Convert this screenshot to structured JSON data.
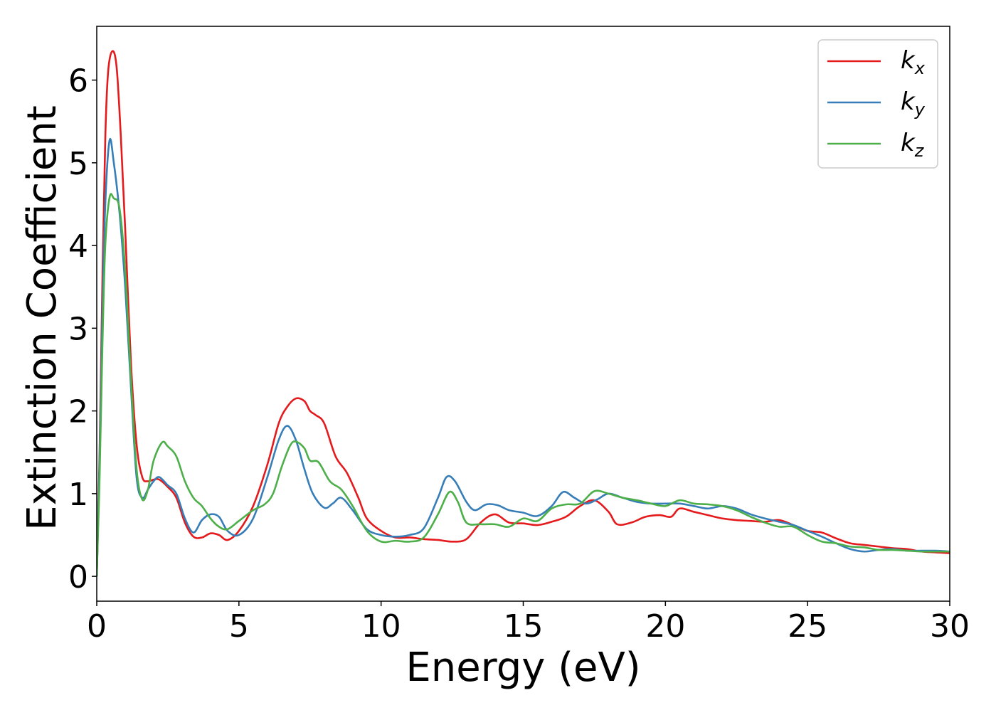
{
  "chart_data": {
    "type": "line",
    "xlabel": "Energy (eV)",
    "ylabel": "Extinction Coefficient",
    "xlim": [
      0,
      30
    ],
    "ylim": [
      -0.3,
      6.65
    ],
    "xticks": [
      0,
      5,
      10,
      15,
      20,
      25,
      30
    ],
    "xtick_labels": [
      "0",
      "5",
      "10",
      "15",
      "20",
      "25",
      "30"
    ],
    "yticks": [
      0,
      1,
      2,
      3,
      4,
      5,
      6
    ],
    "ytick_labels": [
      "0",
      "1",
      "2",
      "3",
      "4",
      "5",
      "6"
    ],
    "grid": false,
    "legend_position": "top-right",
    "series": [
      {
        "name": "k",
        "name_subscript": "x",
        "color": "#e41a1c",
        "points": [
          [
            0,
            0
          ],
          [
            0.1,
            1.5
          ],
          [
            0.2,
            3.6
          ],
          [
            0.3,
            5.3
          ],
          [
            0.4,
            6.1
          ],
          [
            0.55,
            6.35
          ],
          [
            0.7,
            6.15
          ],
          [
            0.85,
            5.3
          ],
          [
            1.0,
            4.2
          ],
          [
            1.2,
            2.6
          ],
          [
            1.4,
            1.6
          ],
          [
            1.6,
            1.2
          ],
          [
            1.8,
            1.15
          ],
          [
            2.0,
            1.17
          ],
          [
            2.2,
            1.17
          ],
          [
            2.5,
            1.08
          ],
          [
            2.8,
            0.95
          ],
          [
            3.1,
            0.65
          ],
          [
            3.4,
            0.48
          ],
          [
            3.7,
            0.47
          ],
          [
            4.0,
            0.52
          ],
          [
            4.3,
            0.5
          ],
          [
            4.6,
            0.44
          ],
          [
            5.0,
            0.55
          ],
          [
            5.5,
            0.85
          ],
          [
            6.0,
            1.35
          ],
          [
            6.4,
            1.85
          ],
          [
            6.7,
            2.05
          ],
          [
            7.0,
            2.15
          ],
          [
            7.3,
            2.12
          ],
          [
            7.5,
            2.0
          ],
          [
            7.7,
            1.95
          ],
          [
            8.0,
            1.85
          ],
          [
            8.4,
            1.45
          ],
          [
            8.8,
            1.25
          ],
          [
            9.2,
            0.95
          ],
          [
            9.5,
            0.7
          ],
          [
            10.0,
            0.55
          ],
          [
            10.5,
            0.47
          ],
          [
            11.0,
            0.47
          ],
          [
            11.5,
            0.45
          ],
          [
            12.0,
            0.44
          ],
          [
            12.5,
            0.42
          ],
          [
            13.0,
            0.45
          ],
          [
            13.5,
            0.65
          ],
          [
            14.0,
            0.75
          ],
          [
            14.5,
            0.65
          ],
          [
            15.0,
            0.64
          ],
          [
            15.5,
            0.62
          ],
          [
            16.0,
            0.66
          ],
          [
            16.5,
            0.72
          ],
          [
            17.0,
            0.85
          ],
          [
            17.5,
            0.92
          ],
          [
            18.0,
            0.78
          ],
          [
            18.3,
            0.63
          ],
          [
            18.8,
            0.65
          ],
          [
            19.3,
            0.72
          ],
          [
            19.8,
            0.74
          ],
          [
            20.2,
            0.72
          ],
          [
            20.5,
            0.82
          ],
          [
            21.0,
            0.78
          ],
          [
            21.5,
            0.74
          ],
          [
            22.0,
            0.7
          ],
          [
            22.5,
            0.68
          ],
          [
            23.0,
            0.67
          ],
          [
            23.5,
            0.66
          ],
          [
            24.0,
            0.68
          ],
          [
            24.5,
            0.62
          ],
          [
            25.0,
            0.55
          ],
          [
            25.5,
            0.53
          ],
          [
            26.0,
            0.46
          ],
          [
            26.5,
            0.4
          ],
          [
            27.0,
            0.38
          ],
          [
            27.5,
            0.36
          ],
          [
            28.0,
            0.34
          ],
          [
            28.5,
            0.33
          ],
          [
            29.0,
            0.3
          ],
          [
            29.5,
            0.29
          ],
          [
            30.0,
            0.28
          ]
        ]
      },
      {
        "name": "k",
        "name_subscript": "y",
        "color": "#377eb8",
        "points": [
          [
            0,
            0
          ],
          [
            0.1,
            1.4
          ],
          [
            0.2,
            3.2
          ],
          [
            0.3,
            4.5
          ],
          [
            0.45,
            5.27
          ],
          [
            0.6,
            5.0
          ],
          [
            0.8,
            4.4
          ],
          [
            1.0,
            3.5
          ],
          [
            1.2,
            2.3
          ],
          [
            1.4,
            1.2
          ],
          [
            1.6,
            0.95
          ],
          [
            1.8,
            1.05
          ],
          [
            2.0,
            1.15
          ],
          [
            2.2,
            1.2
          ],
          [
            2.5,
            1.1
          ],
          [
            2.8,
            1.0
          ],
          [
            3.1,
            0.7
          ],
          [
            3.4,
            0.53
          ],
          [
            3.7,
            0.68
          ],
          [
            4.0,
            0.75
          ],
          [
            4.3,
            0.72
          ],
          [
            4.6,
            0.55
          ],
          [
            5.0,
            0.5
          ],
          [
            5.5,
            0.7
          ],
          [
            6.0,
            1.2
          ],
          [
            6.4,
            1.65
          ],
          [
            6.7,
            1.82
          ],
          [
            7.0,
            1.65
          ],
          [
            7.3,
            1.3
          ],
          [
            7.6,
            1.0
          ],
          [
            8.0,
            0.83
          ],
          [
            8.3,
            0.88
          ],
          [
            8.6,
            0.95
          ],
          [
            9.0,
            0.8
          ],
          [
            9.5,
            0.57
          ],
          [
            10.0,
            0.5
          ],
          [
            10.5,
            0.48
          ],
          [
            11.0,
            0.5
          ],
          [
            11.5,
            0.58
          ],
          [
            12.0,
            0.95
          ],
          [
            12.3,
            1.2
          ],
          [
            12.6,
            1.15
          ],
          [
            13.0,
            0.9
          ],
          [
            13.3,
            0.8
          ],
          [
            13.7,
            0.87
          ],
          [
            14.1,
            0.86
          ],
          [
            14.5,
            0.8
          ],
          [
            15.0,
            0.77
          ],
          [
            15.5,
            0.73
          ],
          [
            16.0,
            0.85
          ],
          [
            16.4,
            1.02
          ],
          [
            16.8,
            0.95
          ],
          [
            17.2,
            0.88
          ],
          [
            17.6,
            0.93
          ],
          [
            18.0,
            1.0
          ],
          [
            18.5,
            0.95
          ],
          [
            19.0,
            0.9
          ],
          [
            19.5,
            0.88
          ],
          [
            20.0,
            0.88
          ],
          [
            20.5,
            0.88
          ],
          [
            21.0,
            0.85
          ],
          [
            21.5,
            0.82
          ],
          [
            22.0,
            0.85
          ],
          [
            22.5,
            0.82
          ],
          [
            23.0,
            0.75
          ],
          [
            23.5,
            0.7
          ],
          [
            24.0,
            0.66
          ],
          [
            24.5,
            0.62
          ],
          [
            25.0,
            0.55
          ],
          [
            25.5,
            0.48
          ],
          [
            26.0,
            0.4
          ],
          [
            26.5,
            0.33
          ],
          [
            27.0,
            0.3
          ],
          [
            27.5,
            0.32
          ],
          [
            28.0,
            0.33
          ],
          [
            28.5,
            0.31
          ],
          [
            29.0,
            0.31
          ],
          [
            29.5,
            0.31
          ],
          [
            30.0,
            0.3
          ]
        ]
      },
      {
        "name": "k",
        "name_subscript": "z",
        "color": "#4daf4a",
        "points": [
          [
            0,
            0
          ],
          [
            0.1,
            1.2
          ],
          [
            0.2,
            2.8
          ],
          [
            0.3,
            4.0
          ],
          [
            0.45,
            4.58
          ],
          [
            0.6,
            4.57
          ],
          [
            0.8,
            4.45
          ],
          [
            1.0,
            3.7
          ],
          [
            1.2,
            2.4
          ],
          [
            1.4,
            1.3
          ],
          [
            1.6,
            0.93
          ],
          [
            1.8,
            1.05
          ],
          [
            2.0,
            1.4
          ],
          [
            2.3,
            1.62
          ],
          [
            2.5,
            1.57
          ],
          [
            2.8,
            1.45
          ],
          [
            3.1,
            1.15
          ],
          [
            3.4,
            0.95
          ],
          [
            3.7,
            0.85
          ],
          [
            4.0,
            0.7
          ],
          [
            4.3,
            0.6
          ],
          [
            4.6,
            0.57
          ],
          [
            5.0,
            0.67
          ],
          [
            5.5,
            0.8
          ],
          [
            5.9,
            0.87
          ],
          [
            6.2,
            1.0
          ],
          [
            6.5,
            1.32
          ],
          [
            6.8,
            1.58
          ],
          [
            7.0,
            1.63
          ],
          [
            7.3,
            1.55
          ],
          [
            7.5,
            1.4
          ],
          [
            7.8,
            1.38
          ],
          [
            8.2,
            1.15
          ],
          [
            8.6,
            1.05
          ],
          [
            9.0,
            0.85
          ],
          [
            9.5,
            0.55
          ],
          [
            10.0,
            0.42
          ],
          [
            10.5,
            0.43
          ],
          [
            11.0,
            0.42
          ],
          [
            11.5,
            0.47
          ],
          [
            12.0,
            0.75
          ],
          [
            12.4,
            1.02
          ],
          [
            12.7,
            0.9
          ],
          [
            13.0,
            0.65
          ],
          [
            13.5,
            0.63
          ],
          [
            14.0,
            0.63
          ],
          [
            14.5,
            0.6
          ],
          [
            15.0,
            0.7
          ],
          [
            15.5,
            0.67
          ],
          [
            16.0,
            0.82
          ],
          [
            16.5,
            0.87
          ],
          [
            17.0,
            0.88
          ],
          [
            17.5,
            1.03
          ],
          [
            18.0,
            1.0
          ],
          [
            18.5,
            0.95
          ],
          [
            19.0,
            0.92
          ],
          [
            19.5,
            0.88
          ],
          [
            20.0,
            0.85
          ],
          [
            20.5,
            0.92
          ],
          [
            21.0,
            0.88
          ],
          [
            21.5,
            0.87
          ],
          [
            22.0,
            0.85
          ],
          [
            22.5,
            0.8
          ],
          [
            23.0,
            0.72
          ],
          [
            23.5,
            0.65
          ],
          [
            24.0,
            0.6
          ],
          [
            24.5,
            0.6
          ],
          [
            25.0,
            0.5
          ],
          [
            25.5,
            0.42
          ],
          [
            26.0,
            0.4
          ],
          [
            26.5,
            0.36
          ],
          [
            27.0,
            0.35
          ],
          [
            27.5,
            0.32
          ],
          [
            28.0,
            0.32
          ],
          [
            28.5,
            0.31
          ],
          [
            29.0,
            0.3
          ],
          [
            29.5,
            0.3
          ],
          [
            30.0,
            0.3
          ]
        ]
      }
    ]
  }
}
